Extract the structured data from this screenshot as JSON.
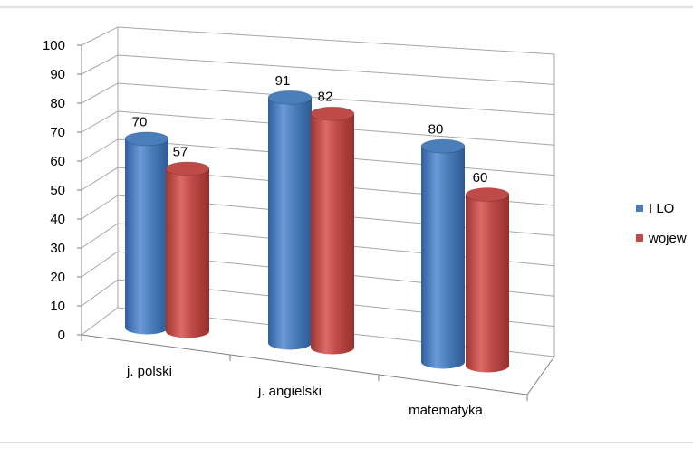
{
  "chart_data": {
    "type": "bar",
    "style": "3d-cylinder",
    "categories": [
      "j. polski",
      "j. angielski",
      "matematyka"
    ],
    "series": [
      {
        "name": "I LO",
        "values": [
          70,
          91,
          80
        ],
        "color": "#4a7ebb"
      },
      {
        "name": "wojew",
        "values": [
          57,
          82,
          60
        ],
        "color": "#be4b48"
      }
    ],
    "ylim": [
      0,
      100
    ],
    "yticks": [
      "0",
      "10",
      "20",
      "30",
      "40",
      "50",
      "60",
      "70",
      "80",
      "90",
      "100"
    ],
    "grid": true,
    "legend": "right",
    "data_labels": true
  }
}
